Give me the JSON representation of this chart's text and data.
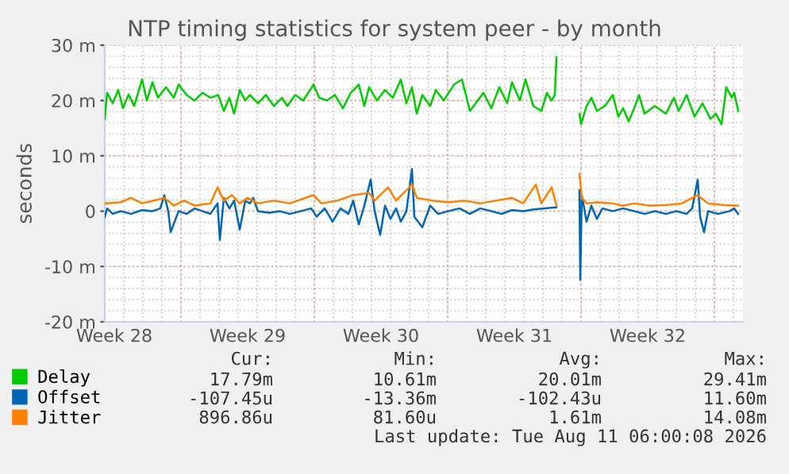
{
  "chart_data": {
    "type": "line",
    "title": "NTP timing statistics for system peer - by month",
    "ylabel": "seconds",
    "xlim": [
      "2026-07-09T00:00",
      "2026-08-11T12:00"
    ],
    "xticks": [
      {
        "value": "2026-07-09T12:00",
        "label": "Week 28"
      },
      {
        "value": "2026-07-13T00:00",
        "label": null
      },
      {
        "value": "2026-07-16T12:00",
        "label": "Week 29"
      },
      {
        "value": "2026-07-20T00:00",
        "label": null
      },
      {
        "value": "2026-07-23T12:00",
        "label": "Week 30"
      },
      {
        "value": "2026-07-27T00:00",
        "label": null
      },
      {
        "value": "2026-07-30T12:00",
        "label": "Week 31"
      },
      {
        "value": "2026-08-03T00:00",
        "label": null
      },
      {
        "value": "2026-08-06T12:00",
        "label": "Week 32"
      },
      {
        "value": "2026-08-10T00:00",
        "label": null
      }
    ],
    "ylim": [
      -20,
      30
    ],
    "yticks": [
      {
        "value": -20,
        "label": "-20 m"
      },
      {
        "value": -10,
        "label": "-10 m"
      },
      0,
      {
        "value": 10,
        "label": "10 m"
      },
      {
        "value": 20,
        "label": "20 m"
      },
      {
        "value": 30,
        "label": "30 m"
      }
    ],
    "grid": true,
    "legend": "bottom",
    "series": [
      {
        "name": "Delay",
        "color": "#00cc00",
        "x": [
          "2026-07-09T00:00",
          "2026-07-09T03:00",
          "2026-07-09T10:00",
          "2026-07-09T17:00",
          "2026-07-09T23:00",
          "2026-07-10T06:00",
          "2026-07-10T13:00",
          "2026-07-10T23:00",
          "2026-07-11T05:00",
          "2026-07-11T12:00",
          "2026-07-11T19:00",
          "2026-07-12T05:00",
          "2026-07-12T15:00",
          "2026-07-12T21:00",
          "2026-07-13T07:00",
          "2026-07-13T17:00",
          "2026-07-14T03:00",
          "2026-07-14T13:00",
          "2026-07-14T23:00",
          "2026-07-15T06:00",
          "2026-07-15T13:00",
          "2026-07-15T19:00",
          "2026-07-16T02:00",
          "2026-07-16T09:00",
          "2026-07-16T15:00",
          "2026-07-17T01:00",
          "2026-07-17T11:00",
          "2026-07-17T21:00",
          "2026-07-18T07:00",
          "2026-07-18T14:00",
          "2026-07-19T00:00",
          "2026-07-19T10:00",
          "2026-07-19T23:00",
          "2026-07-20T06:00",
          "2026-07-20T16:00",
          "2026-07-21T02:00",
          "2026-07-21T12:00",
          "2026-07-21T22:00",
          "2026-07-22T08:00",
          "2026-07-22T15:00",
          "2026-07-22T21:00",
          "2026-07-23T07:00",
          "2026-07-23T17:00",
          "2026-07-24T03:00",
          "2026-07-24T13:00",
          "2026-07-24T20:00",
          "2026-07-25T03:00",
          "2026-07-25T09:00",
          "2026-07-25T16:00",
          "2026-07-26T02:00",
          "2026-07-26T09:00",
          "2026-07-26T19:00",
          "2026-07-27T08:00",
          "2026-07-27T18:00",
          "2026-07-28T04:00",
          "2026-07-28T14:00",
          "2026-07-28T21:00",
          "2026-07-29T07:00",
          "2026-07-29T17:00",
          "2026-07-30T03:00",
          "2026-07-30T09:00",
          "2026-07-30T19:00",
          "2026-07-31T02:00",
          "2026-07-31T12:00",
          "2026-07-31T22:00",
          "2026-08-01T05:00",
          "2026-08-01T11:00",
          "2026-08-01T15:00",
          "2026-08-01T17:00",
          "2026-08-02T07:00",
          "2026-08-02T22:00",
          "2026-08-03T00:00",
          "2026-08-03T07:00",
          "2026-08-03T13:00",
          "2026-08-03T20:00",
          "2026-08-04T06:00",
          "2026-08-04T16:00",
          "2026-08-04T23:00",
          "2026-08-05T05:00",
          "2026-08-05T12:00",
          "2026-08-05T19:00",
          "2026-08-06T01:00",
          "2026-08-06T08:00",
          "2026-08-06T21:00",
          "2026-08-07T11:00",
          "2026-08-07T21:00",
          "2026-08-08T03:00",
          "2026-08-08T13:00",
          "2026-08-08T23:00",
          "2026-08-09T09:00",
          "2026-08-09T19:00",
          "2026-08-10T02:00",
          "2026-08-10T09:00",
          "2026-08-10T15:00",
          "2026-08-10T22:00",
          "2026-08-11T01:00",
          "2026-08-11T06:00"
        ],
        "values": [
          16.7,
          21.4,
          19.5,
          21.9,
          18.6,
          21.1,
          19,
          23.8,
          20,
          23.3,
          20.5,
          22.4,
          20.5,
          22.9,
          21,
          20,
          21.4,
          20.5,
          21,
          18.1,
          20.5,
          17.6,
          21.9,
          20,
          21,
          19.5,
          21,
          19,
          20.5,
          19,
          21,
          20,
          22.9,
          20.5,
          20,
          21,
          18.6,
          21.4,
          22.9,
          19,
          22.4,
          20,
          21.9,
          20.5,
          23.8,
          19.5,
          22.4,
          17.6,
          21,
          19,
          21.9,
          20,
          22.9,
          23.8,
          18.1,
          20,
          21.4,
          18.6,
          22.4,
          19.5,
          23.3,
          20,
          23.8,
          19,
          18.1,
          21.4,
          20,
          21,
          27.8,
          null,
          17.6,
          15.7,
          19,
          20.5,
          18.1,
          19,
          21,
          17.1,
          18.6,
          16.2,
          18.6,
          21,
          17.6,
          19,
          17.6,
          20.5,
          18.1,
          21,
          17.1,
          19.5,
          16.7,
          17.6,
          15.7,
          22.4,
          20.5,
          21.4,
          18.1
        ]
      },
      {
        "name": "Offset",
        "color": "#0066b3",
        "x": [
          "2026-07-09T00:00",
          "2026-07-09T03:00",
          "2026-07-09T10:00",
          "2026-07-09T20:00",
          "2026-07-10T09:00",
          "2026-07-10T23:00",
          "2026-07-11T12:00",
          "2026-07-11T22:00",
          "2026-07-12T03:00",
          "2026-07-12T08:00",
          "2026-07-12T11:00",
          "2026-07-12T21:00",
          "2026-07-13T07:00",
          "2026-07-13T17:00",
          "2026-07-14T03:00",
          "2026-07-14T13:00",
          "2026-07-14T22:00",
          "2026-07-15T01:00",
          "2026-07-15T06:00",
          "2026-07-15T13:00",
          "2026-07-15T19:00",
          "2026-07-16T02:00",
          "2026-07-16T09:00",
          "2026-07-16T15:00",
          "2026-07-16T19:00",
          "2026-07-17T01:00",
          "2026-07-17T15:00",
          "2026-07-18T04:00",
          "2026-07-18T17:00",
          "2026-07-19T07:00",
          "2026-07-19T20:00",
          "2026-07-20T03:00",
          "2026-07-20T13:00",
          "2026-07-20T23:00",
          "2026-07-21T09:00",
          "2026-07-21T19:00",
          "2026-07-22T01:00",
          "2026-07-22T08:00",
          "2026-07-22T15:00",
          "2026-07-22T23:00",
          "2026-07-23T04:00",
          "2026-07-23T11:00",
          "2026-07-23T17:00",
          "2026-07-24T00:00",
          "2026-07-24T07:00",
          "2026-07-24T13:00",
          "2026-07-24T20:00",
          "2026-07-25T03:00",
          "2026-07-25T06:00",
          "2026-07-25T16:00",
          "2026-07-26T02:00",
          "2026-07-26T12:00",
          "2026-07-27T01:00",
          "2026-07-27T15:00",
          "2026-07-28T04:00",
          "2026-07-28T17:00",
          "2026-07-29T07:00",
          "2026-07-29T20:00",
          "2026-07-30T09:00",
          "2026-07-30T23:00",
          "2026-07-31T12:00",
          "2026-08-01T01:00",
          "2026-08-01T17:00",
          "2026-08-02T07:00",
          "2026-08-02T22:00",
          "2026-08-02T23:00",
          "2026-08-03T01:00",
          "2026-08-03T07:00",
          "2026-08-03T13:00",
          "2026-08-03T20:00",
          "2026-08-04T03:00",
          "2026-08-04T16:00",
          "2026-08-05T05:00",
          "2026-08-05T19:00",
          "2026-08-06T08:00",
          "2026-08-06T21:00",
          "2026-08-07T11:00",
          "2026-08-08T00:00",
          "2026-08-08T13:00",
          "2026-08-08T20:00",
          "2026-08-09T03:00",
          "2026-08-09T06:00",
          "2026-08-09T11:00",
          "2026-08-09T16:00",
          "2026-08-10T05:00",
          "2026-08-10T19:00",
          "2026-08-11T01:00",
          "2026-08-11T06:00"
        ],
        "values": [
          -1,
          0.5,
          -0.5,
          0,
          -0.5,
          0.2,
          0,
          0.5,
          2.9,
          0,
          -3.8,
          0,
          -0.5,
          0.5,
          0,
          -0.5,
          1.4,
          -5.2,
          2.4,
          0.5,
          1.9,
          -3.3,
          1.9,
          1.4,
          2.4,
          0,
          -0.3,
          0,
          -0.5,
          0,
          0.5,
          -1,
          0.5,
          -1.9,
          0.5,
          -0.5,
          1.9,
          -2.4,
          1,
          5.7,
          0,
          -4.3,
          1,
          -1.4,
          0.5,
          -1.9,
          0,
          7.6,
          -1,
          -2.9,
          1,
          -0.5,
          0,
          0.5,
          -0.5,
          0.5,
          0,
          -0.5,
          0.2,
          0,
          0.3,
          0.5,
          0.7,
          null,
          3.8,
          -12.4,
          2.9,
          -1.9,
          1,
          -1.4,
          0.5,
          0,
          0.5,
          0,
          -0.5,
          0,
          -0.5,
          0,
          -0.5,
          0.5,
          5.7,
          -1,
          -3.8,
          0,
          -0.5,
          0,
          0.5,
          -0.5
        ]
      },
      {
        "name": "Jitter",
        "color": "#ff8000",
        "x": [
          "2026-07-09T00:00",
          "2026-07-09T20:00",
          "2026-07-10T09:00",
          "2026-07-10T23:00",
          "2026-07-11T19:00",
          "2026-07-12T03:00",
          "2026-07-12T15:00",
          "2026-07-13T04:00",
          "2026-07-13T17:00",
          "2026-07-14T13:00",
          "2026-07-14T22:00",
          "2026-07-15T06:00",
          "2026-07-15T16:00",
          "2026-07-16T02:00",
          "2026-07-16T12:00",
          "2026-07-17T01:00",
          "2026-07-17T21:00",
          "2026-07-18T17:00",
          "2026-07-19T07:00",
          "2026-07-19T23:00",
          "2026-07-20T09:00",
          "2026-07-21T05:00",
          "2026-07-22T01:00",
          "2026-07-22T21:00",
          "2026-07-23T04:00",
          "2026-07-23T21:00",
          "2026-07-24T07:00",
          "2026-07-25T03:00",
          "2026-07-25T09:00",
          "2026-07-26T05:00",
          "2026-07-27T01:00",
          "2026-07-27T21:00",
          "2026-07-28T17:00",
          "2026-07-29T13:00",
          "2026-07-30T09:00",
          "2026-07-30T23:00",
          "2026-07-31T15:00",
          "2026-07-31T22:00",
          "2026-08-01T11:00",
          "2026-08-01T17:00",
          "2026-08-02T07:00",
          "2026-08-02T22:00",
          "2026-08-03T01:00",
          "2026-08-03T07:00",
          "2026-08-03T20:00",
          "2026-08-04T16:00",
          "2026-08-05T05:00",
          "2026-08-05T19:00",
          "2026-08-06T15:00",
          "2026-08-07T11:00",
          "2026-08-08T07:00",
          "2026-08-09T03:00",
          "2026-08-09T16:00",
          "2026-08-10T12:00",
          "2026-08-11T06:00"
        ],
        "values": [
          1.4,
          1.6,
          2.4,
          1.4,
          2.1,
          2.4,
          1,
          1.9,
          1,
          1.4,
          4.3,
          1.9,
          2.9,
          1.4,
          2.4,
          1.4,
          1.9,
          1.4,
          2.1,
          2.9,
          1.4,
          1.9,
          2.9,
          3.3,
          1.9,
          4.3,
          1.9,
          4.8,
          2.4,
          1.9,
          1.6,
          1.9,
          1.4,
          1.9,
          2.4,
          1.4,
          4.8,
          1.4,
          4.3,
          1,
          null,
          6.7,
          2.4,
          1.4,
          1.6,
          1.4,
          1,
          1.4,
          1,
          1.1,
          1.4,
          2.9,
          1.4,
          1.1,
          1
        ]
      }
    ],
    "annotations": [
      "Cur:",
      "Min:",
      "Avg:",
      "Max:",
      "17.79m",
      "10.61m",
      "20.01m",
      "29.41m",
      "-107.45u",
      "-13.36m",
      "-102.43u",
      "11.60m",
      "896.86u",
      "81.60u",
      "1.61m",
      "14.08m",
      "Last update: Tue Aug 11 06:00:08 2026"
    ]
  }
}
